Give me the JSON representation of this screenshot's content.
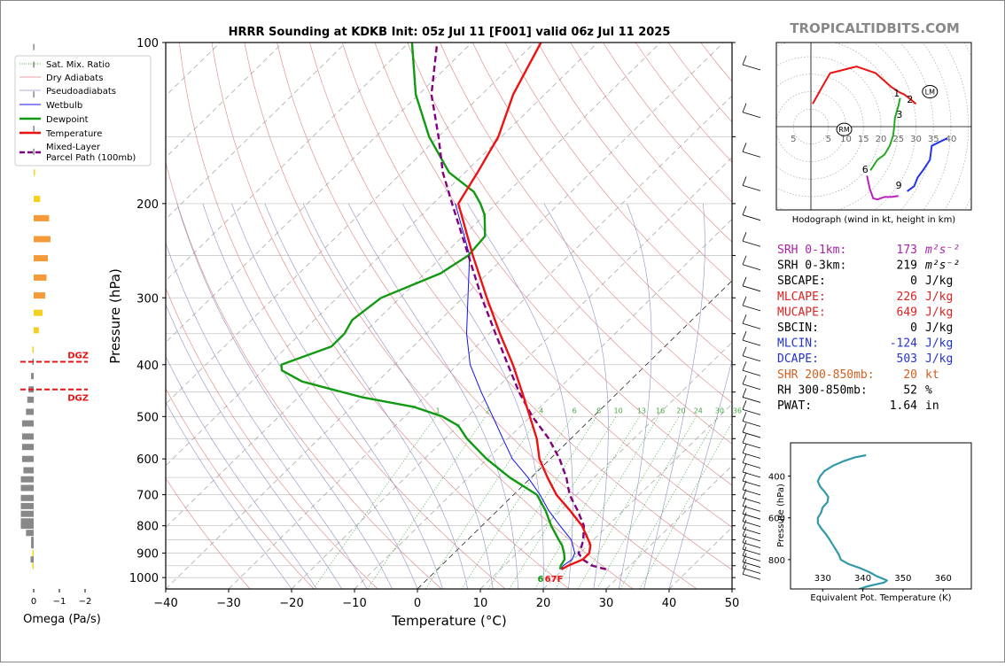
{
  "colors": {
    "temperature": "#ee1111",
    "dewpoint": "#119911",
    "wetbulb": "#1111ee",
    "parcel": "#800080",
    "dry_adiabat": "#e08080",
    "pseudoadiabat": "#9090c8",
    "mixing_ratio": "#44aa44",
    "isotherm": "#999999",
    "dgz": "#ee1111",
    "omega_yellow": "#f4d020",
    "omega_orange": "#f59a38",
    "omega_gray": "#888888",
    "hodo_red": "#ee1111",
    "hodo_green": "#22aa22",
    "hodo_magenta": "#bb22bb",
    "hodo_blue": "#2233ee",
    "theta_e": "#3399aa",
    "brand": "#888888"
  },
  "chart_data": [
    {
      "type": "line",
      "chart": "skew-t",
      "title": "HRRR Sounding at KDKB Init: 05z Jul 11 [F001] valid 06z Jul 11 2025",
      "xlabel": "Temperature (°C)",
      "ylabel": "Pressure (hPa)",
      "xlim": [
        -40,
        50
      ],
      "ylim": [
        1050,
        100
      ],
      "yscale": "log",
      "xticks": [
        -40,
        -30,
        -20,
        -10,
        0,
        10,
        20,
        30,
        40,
        50
      ],
      "xtick_labels": [
        "−40",
        "−30",
        "−20",
        "−10",
        "0",
        "10",
        "20",
        "30",
        "40",
        "50"
      ],
      "yticks": [
        100,
        200,
        300,
        400,
        500,
        600,
        700,
        800,
        900,
        1000
      ],
      "legend": [
        "Sat. Mix. Ratio",
        "Dry Adiabats",
        "Pseudoadiabats",
        "Wetbulb",
        "Dewpoint",
        "Temperature",
        "Mixed-Layer Parcel Path (100mb)"
      ],
      "mixing_ratio_labels": [
        "1",
        "2",
        "4",
        "6",
        "8",
        "10",
        "13",
        "16",
        "20",
        "24",
        "30",
        "36"
      ],
      "surface_label": "67F",
      "surface_dewpoint_label": "6",
      "series": [
        {
          "name": "Temperature",
          "pressure": [
            965,
            950,
            925,
            900,
            870,
            850,
            800,
            750,
            700,
            650,
            600,
            550,
            500,
            450,
            400,
            350,
            300,
            250,
            200,
            175,
            150,
            125,
            100
          ],
          "values": [
            19.7,
            20.2,
            21.5,
            21.5,
            20.4,
            19.2,
            15.9,
            11.6,
            6.8,
            2.6,
            -1.7,
            -5.4,
            -10.1,
            -15.3,
            -21.2,
            -28.3,
            -36.2,
            -45.3,
            -56.0,
            -58.0,
            -60.5,
            -65.0,
            -69.0
          ]
        },
        {
          "name": "Dewpoint",
          "pressure": [
            965,
            950,
            925,
            900,
            870,
            850,
            800,
            750,
            700,
            650,
            600,
            550,
            520,
            500,
            480,
            460,
            430,
            410,
            400,
            370,
            350,
            330,
            300,
            270,
            250,
            230,
            210,
            200,
            190,
            175,
            150,
            125,
            100
          ],
          "values": [
            19.5,
            19.0,
            18.6,
            17.5,
            15.9,
            14.5,
            11.0,
            7.7,
            3.7,
            -3.4,
            -10.1,
            -16.5,
            -20.0,
            -24.0,
            -30.0,
            -40.0,
            -52.0,
            -57.0,
            -58.0,
            -53.0,
            -53.0,
            -54.0,
            -53.0,
            -47.5,
            -46.0,
            -46.5,
            -50.0,
            -52.5,
            -55.5,
            -62.5,
            -71.5,
            -80.5,
            -89.5
          ]
        },
        {
          "name": "Wetbulb",
          "pressure": [
            965,
            950,
            925,
            900,
            850,
            800,
            750,
            700,
            650,
            600,
            550,
            500,
            450,
            400,
            350,
            300,
            250,
            200
          ],
          "values": [
            19.6,
            19.4,
            19.8,
            19.2,
            16.5,
            12.4,
            8.2,
            4.2,
            -0.5,
            -6.0,
            -10.8,
            -16.0,
            -21.8,
            -28.0,
            -33.6,
            -39.2,
            -45.8,
            -56.5
          ]
        },
        {
          "name": "Mixed-Layer Parcel Path (100mb)",
          "pressure": [
            965,
            950,
            925,
            900,
            875,
            850,
            800,
            750,
            700,
            650,
            600,
            550,
            500,
            450,
            400,
            350,
            300,
            250,
            200,
            175,
            150,
            125,
            100
          ],
          "values": [
            26.8,
            24.0,
            21.5,
            19.8,
            19.2,
            18.4,
            16.2,
            12.8,
            8.9,
            5.6,
            1.5,
            -3.5,
            -9.7,
            -15.8,
            -22.0,
            -29.0,
            -37.0,
            -46.0,
            -57.0,
            -63.5,
            -70.0,
            -78.0,
            -85.5
          ]
        }
      ]
    },
    {
      "type": "bar",
      "chart": "omega-profile",
      "xlabel": "Omega (Pa/s)",
      "xlim": [
        0.2,
        -2.0
      ],
      "xticks": [
        0,
        -1,
        -2
      ],
      "xtick_labels": [
        "0",
        "−1",
        "−2"
      ],
      "dgz_label_top": "DGZ",
      "dgz_label_bottom": "DGZ",
      "dgz_pressures": [
        395,
        445
      ],
      "bars": [
        {
          "p": 950,
          "omega": 0.05,
          "color": "yellow"
        },
        {
          "p": 925,
          "omega": 0.12,
          "color": "gray"
        },
        {
          "p": 900,
          "omega": 0.05,
          "color": "yellow"
        },
        {
          "p": 870,
          "omega": 0.1,
          "color": "gray"
        },
        {
          "p": 850,
          "omega": 0.1,
          "color": "gray"
        },
        {
          "p": 825,
          "omega": 0.3,
          "color": "gray"
        },
        {
          "p": 800,
          "omega": 0.5,
          "color": "gray"
        },
        {
          "p": 785,
          "omega": 0.5,
          "color": "gray"
        },
        {
          "p": 760,
          "omega": 0.5,
          "color": "gray"
        },
        {
          "p": 735,
          "omega": 0.5,
          "color": "gray"
        },
        {
          "p": 710,
          "omega": 0.5,
          "color": "gray"
        },
        {
          "p": 680,
          "omega": 0.5,
          "color": "gray"
        },
        {
          "p": 655,
          "omega": 0.5,
          "color": "gray"
        },
        {
          "p": 630,
          "omega": 0.4,
          "color": "gray"
        },
        {
          "p": 600,
          "omega": 0.45,
          "color": "gray"
        },
        {
          "p": 570,
          "omega": 0.45,
          "color": "gray"
        },
        {
          "p": 545,
          "omega": 0.45,
          "color": "gray"
        },
        {
          "p": 515,
          "omega": 0.45,
          "color": "gray"
        },
        {
          "p": 490,
          "omega": 0.3,
          "color": "gray"
        },
        {
          "p": 465,
          "omega": 0.25,
          "color": "gray"
        },
        {
          "p": 445,
          "omega": 0.2,
          "color": "gray"
        },
        {
          "p": 420,
          "omega": 0.1,
          "color": "gray"
        },
        {
          "p": 395,
          "omega": 0.05,
          "color": "gray"
        },
        {
          "p": 375,
          "omega": 0.05,
          "color": "yellow"
        },
        {
          "p": 345,
          "omega": -0.2,
          "color": "yellow"
        },
        {
          "p": 320,
          "omega": -0.35,
          "color": "yellow"
        },
        {
          "p": 297,
          "omega": -0.45,
          "color": "orange"
        },
        {
          "p": 275,
          "omega": -0.5,
          "color": "orange"
        },
        {
          "p": 253,
          "omega": -0.55,
          "color": "orange"
        },
        {
          "p": 233,
          "omega": -0.65,
          "color": "orange"
        },
        {
          "p": 213,
          "omega": -0.6,
          "color": "orange"
        },
        {
          "p": 196,
          "omega": -0.25,
          "color": "yellow"
        },
        {
          "p": 175,
          "omega": -0.05,
          "color": "yellow"
        },
        {
          "p": 160,
          "omega": 0.02,
          "color": "gray"
        },
        {
          "p": 145,
          "omega": 0.02,
          "color": "gray"
        },
        {
          "p": 125,
          "omega": 0.02,
          "color": "gray"
        },
        {
          "p": 110,
          "omega": 0.02,
          "color": "gray"
        },
        {
          "p": 102,
          "omega": 0.02,
          "color": "gray"
        }
      ]
    },
    {
      "type": "line",
      "chart": "hodograph",
      "xlabel": "Hodograph (wind in kt, height in km)",
      "xlim": [
        -5,
        45
      ],
      "ylim": [
        -20,
        20
      ],
      "ring_labels": [
        "5",
        "5",
        "10",
        "15",
        "20",
        "25",
        "30",
        "35",
        "40"
      ],
      "markers": [
        {
          "label": "RM",
          "u": 9.5,
          "v": -0.8
        },
        {
          "label": "LM",
          "u": 34,
          "v": 10
        }
      ],
      "height_labels": [
        {
          "label": "1",
          "u": 24.5,
          "v": 9.6
        },
        {
          "label": "2",
          "u": 28.3,
          "v": 7.9
        },
        {
          "label": "3",
          "u": 25.3,
          "v": 3.6
        },
        {
          "label": "6",
          "u": 15.5,
          "v": -12.1
        },
        {
          "label": "9",
          "u": 25.1,
          "v": -16.7
        }
      ],
      "series": [
        {
          "name": "0-3 km",
          "color": "red",
          "u": [
            0.5,
            3.0,
            5.5,
            13.0,
            18.5,
            23.0,
            25.5,
            26.5,
            28.0,
            30.0
          ],
          "v": [
            6.5,
            11.0,
            15.3,
            17.2,
            15.3,
            11.3,
            9.7,
            9.3,
            8.2,
            6.5
          ]
        },
        {
          "name": "3-6 km",
          "color": "green",
          "u": [
            25.5,
            25.0,
            24.0,
            23.8,
            23.5,
            22.5,
            21.0,
            19.0,
            17.0
          ],
          "v": [
            8.2,
            6.0,
            2.5,
            0.0,
            -2.5,
            -5.5,
            -8.0,
            -9.5,
            -12.5
          ]
        },
        {
          "name": "6-9 km",
          "color": "magenta",
          "u": [
            16.0,
            16.8,
            17.8,
            19.0,
            21.0,
            23.0,
            25.0
          ],
          "v": [
            -14.0,
            -17.7,
            -20.5,
            -20.8,
            -20.1,
            -20.1,
            -19.8
          ]
        },
        {
          "name": "9-12 km",
          "color": "blue",
          "u": [
            27.5,
            29.5,
            30.5,
            32.0,
            34.0,
            34.5,
            37.5,
            39.0
          ],
          "v": [
            -18.5,
            -17.0,
            -14.5,
            -12.5,
            -9.5,
            -5.5,
            -4.0,
            -3.3
          ]
        }
      ]
    },
    {
      "type": "line",
      "chart": "theta-e-profile",
      "xlabel": "Equivalent Pot. Temperature (K)",
      "ylabel": "Pressure (hPa)",
      "xlim": [
        322,
        367
      ],
      "ylim": [
        1000,
        300
      ],
      "xticks": [
        330,
        340,
        350,
        360
      ],
      "yticks": [
        400,
        600,
        800
      ],
      "series": [
        {
          "name": "theta-e",
          "p": [
            945,
            930,
            920,
            910,
            900,
            880,
            860,
            840,
            820,
            800,
            775,
            750,
            725,
            700,
            675,
            650,
            625,
            600,
            575,
            550,
            525,
            500,
            475,
            450,
            425,
            400,
            375,
            350,
            330,
            310,
            300
          ],
          "values": [
            338.6,
            340.8,
            343.0,
            345.3,
            346.0,
            343.5,
            341.6,
            339.2,
            336.3,
            334.5,
            334.0,
            333.2,
            332.4,
            331.6,
            330.7,
            329.6,
            328.8,
            328.8,
            329.6,
            330.0,
            331.2,
            331.4,
            330.5,
            329.4,
            328.8,
            329.4,
            330.5,
            332.6,
            335.0,
            338.0,
            340.8
          ]
        }
      ]
    }
  ],
  "indices": [
    {
      "label": "SRH 0-1km:",
      "value": "173",
      "unit": "m²s⁻²",
      "color": "#aa22aa"
    },
    {
      "label": "SRH 0-3km:",
      "value": "219",
      "unit": "m²s⁻²",
      "color": "#000000"
    },
    {
      "label": "SBCAPE:",
      "value": "0",
      "unit": "J/kg",
      "color": "#000000"
    },
    {
      "label": "MLCAPE:",
      "value": "226",
      "unit": "J/kg",
      "color": "#dd2222"
    },
    {
      "label": "MUCAPE:",
      "value": "649",
      "unit": "J/kg",
      "color": "#dd2222"
    },
    {
      "label": "SBCIN:",
      "value": "0",
      "unit": "J/kg",
      "color": "#000000"
    },
    {
      "label": "MLCIN:",
      "value": "-124",
      "unit": "J/kg",
      "color": "#2233cc"
    },
    {
      "label": "DCAPE:",
      "value": "503",
      "unit": "J/kg",
      "color": "#2233cc"
    },
    {
      "label": "SHR 200-850mb:",
      "value": "20",
      "unit": "kt",
      "color": "#d06020"
    },
    {
      "label": "RH 300-850mb:",
      "value": "52",
      "unit": "%",
      "color": "#000000"
    },
    {
      "label": "PWAT:",
      "value": "1.64",
      "unit": "in",
      "color": "#000000"
    }
  ],
  "brand": "TROPICALTIDBITS.COM"
}
